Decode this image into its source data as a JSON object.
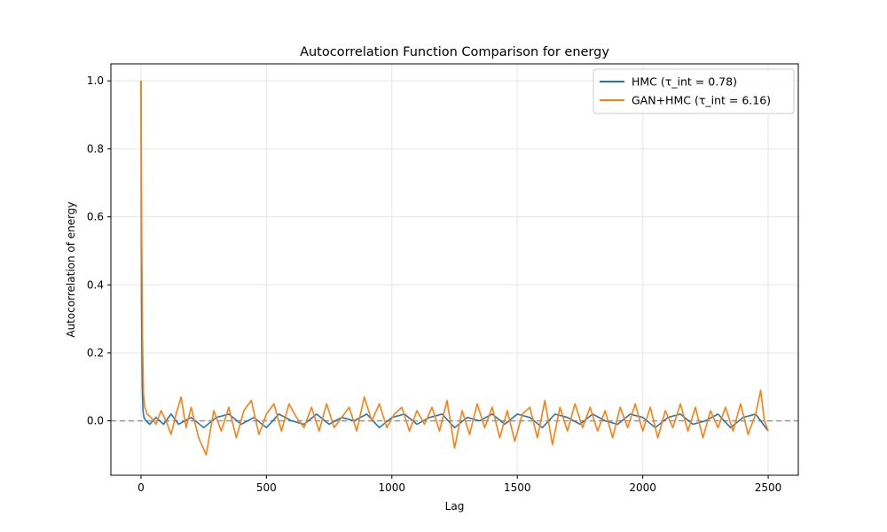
{
  "chart_data": {
    "type": "line",
    "title": "Autocorrelation Function Comparison for energy",
    "xlabel": "Lag",
    "ylabel": "Autocorrelation of energy",
    "xlim": [
      -120,
      2620
    ],
    "ylim": [
      -0.16,
      1.05
    ],
    "xticks": [
      0,
      500,
      1000,
      1500,
      2000,
      2500
    ],
    "yticks": [
      0.0,
      0.2,
      0.4,
      0.6,
      0.8,
      1.0
    ],
    "xtick_labels": [
      "0",
      "500",
      "1000",
      "1500",
      "2000",
      "2500"
    ],
    "ytick_labels": [
      "0.0",
      "0.2",
      "0.4",
      "0.6",
      "0.8",
      "1.0"
    ],
    "grid": true,
    "legend_position": "top-right",
    "reference_line": {
      "y": 0.0,
      "style": "dashed",
      "color": "#999999"
    },
    "series": [
      {
        "name": "HMC (τ_int = 0.78)",
        "color": "#1f77b4",
        "x": [
          0,
          2,
          5,
          8,
          12,
          20,
          35,
          60,
          90,
          120,
          150,
          200,
          250,
          300,
          350,
          400,
          450,
          500,
          550,
          600,
          650,
          700,
          750,
          800,
          850,
          900,
          950,
          1000,
          1050,
          1100,
          1150,
          1200,
          1250,
          1300,
          1350,
          1400,
          1450,
          1500,
          1550,
          1600,
          1650,
          1700,
          1750,
          1800,
          1850,
          1900,
          1950,
          2000,
          2050,
          2100,
          2150,
          2200,
          2250,
          2300,
          2350,
          2400,
          2450,
          2500
        ],
        "values": [
          1.0,
          0.35,
          0.1,
          0.03,
          0.01,
          0.0,
          -0.01,
          0.01,
          -0.01,
          0.02,
          -0.01,
          0.01,
          -0.02,
          0.01,
          0.02,
          -0.01,
          0.01,
          -0.02,
          0.02,
          0.0,
          -0.01,
          0.02,
          -0.01,
          0.01,
          0.0,
          0.02,
          -0.02,
          0.01,
          0.02,
          -0.01,
          0.01,
          0.02,
          -0.02,
          0.01,
          0.0,
          0.02,
          -0.01,
          0.02,
          0.01,
          -0.02,
          0.02,
          0.01,
          -0.01,
          0.02,
          0.0,
          -0.01,
          0.02,
          0.01,
          -0.02,
          0.01,
          0.02,
          -0.01,
          0.0,
          0.02,
          -0.02,
          0.01,
          0.02,
          -0.03
        ]
      },
      {
        "name": "GAN+HMC (τ_int = 6.16)",
        "color": "#ff7f0e",
        "x": [
          0,
          3,
          6,
          10,
          15,
          25,
          40,
          60,
          80,
          100,
          120,
          140,
          160,
          180,
          200,
          230,
          260,
          290,
          320,
          350,
          380,
          410,
          440,
          470,
          500,
          530,
          560,
          590,
          620,
          650,
          680,
          710,
          740,
          770,
          800,
          830,
          860,
          890,
          920,
          950,
          980,
          1010,
          1040,
          1070,
          1100,
          1130,
          1160,
          1190,
          1220,
          1250,
          1280,
          1310,
          1340,
          1370,
          1400,
          1430,
          1460,
          1490,
          1520,
          1550,
          1580,
          1610,
          1640,
          1670,
          1700,
          1730,
          1760,
          1790,
          1820,
          1850,
          1880,
          1910,
          1940,
          1970,
          2000,
          2030,
          2060,
          2090,
          2120,
          2150,
          2180,
          2210,
          2240,
          2270,
          2300,
          2330,
          2360,
          2390,
          2420,
          2450,
          2470,
          2485,
          2500
        ],
        "values": [
          1.0,
          0.55,
          0.25,
          0.08,
          0.04,
          0.02,
          0.01,
          -0.01,
          0.03,
          0.0,
          -0.04,
          0.02,
          0.07,
          -0.02,
          0.04,
          -0.05,
          -0.1,
          0.03,
          -0.03,
          0.04,
          -0.05,
          0.03,
          0.06,
          -0.04,
          0.02,
          0.05,
          -0.03,
          0.05,
          0.01,
          -0.02,
          0.04,
          -0.03,
          0.05,
          -0.02,
          0.01,
          0.04,
          -0.03,
          0.07,
          0.0,
          0.05,
          -0.02,
          0.02,
          0.04,
          -0.03,
          0.03,
          -0.01,
          0.04,
          -0.03,
          0.06,
          -0.08,
          0.03,
          -0.04,
          0.05,
          -0.02,
          0.04,
          -0.05,
          0.03,
          -0.06,
          0.02,
          0.04,
          -0.05,
          0.06,
          -0.07,
          0.04,
          -0.03,
          0.05,
          -0.02,
          0.04,
          -0.03,
          0.03,
          -0.05,
          0.04,
          -0.02,
          0.05,
          -0.03,
          0.04,
          -0.05,
          0.03,
          -0.02,
          0.05,
          -0.03,
          0.04,
          -0.05,
          0.03,
          -0.02,
          0.04,
          -0.03,
          0.05,
          -0.04,
          0.02,
          0.09,
          0.0,
          -0.03
        ]
      }
    ]
  }
}
